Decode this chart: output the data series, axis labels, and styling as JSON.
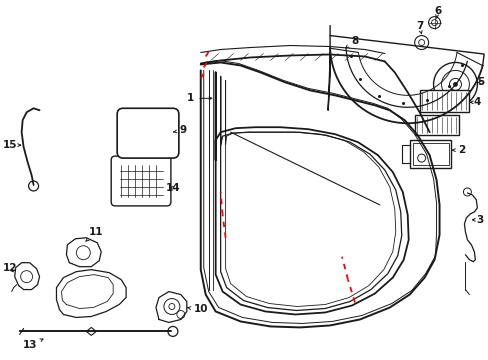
{
  "bg_color": "#ffffff",
  "line_color": "#1a1a1a",
  "red_color": "#ff0000",
  "fig_width": 4.89,
  "fig_height": 3.6,
  "dpi": 100
}
